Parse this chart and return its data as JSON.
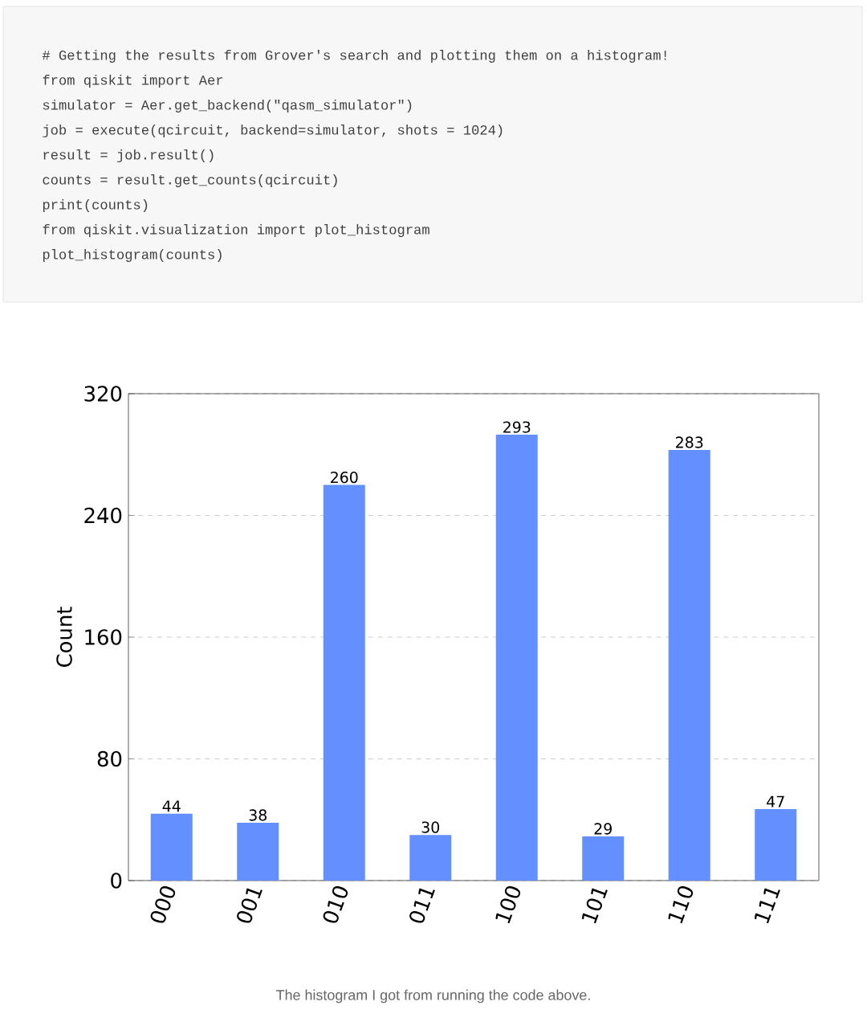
{
  "chart_data": {
    "type": "bar",
    "ylabel": "Count",
    "categories": [
      "000",
      "001",
      "010",
      "011",
      "100",
      "101",
      "110",
      "111"
    ],
    "values": [
      44,
      38,
      260,
      30,
      293,
      29,
      283,
      47
    ],
    "color": "#648fff",
    "ylim": [
      0,
      320
    ],
    "yticks": [
      0,
      80,
      160,
      240,
      320
    ],
    "grid": "y",
    "data_labels": true,
    "annotations": [
      "# Getting the results from Grover's search and plotting them on a histogram!",
      "from qiskit import Aer",
      "simulator = Aer.get_backend(\"qasm_simulator\")",
      "job = execute(qcircuit, backend=simulator, shots = 1024)",
      "result = job.result()",
      "counts = result.get_counts(qcircuit)",
      "print(counts)",
      "from qiskit.visualization import plot_histogram",
      "plot_histogram(counts)",
      "The histogram I got from running the code above."
    ]
  }
}
